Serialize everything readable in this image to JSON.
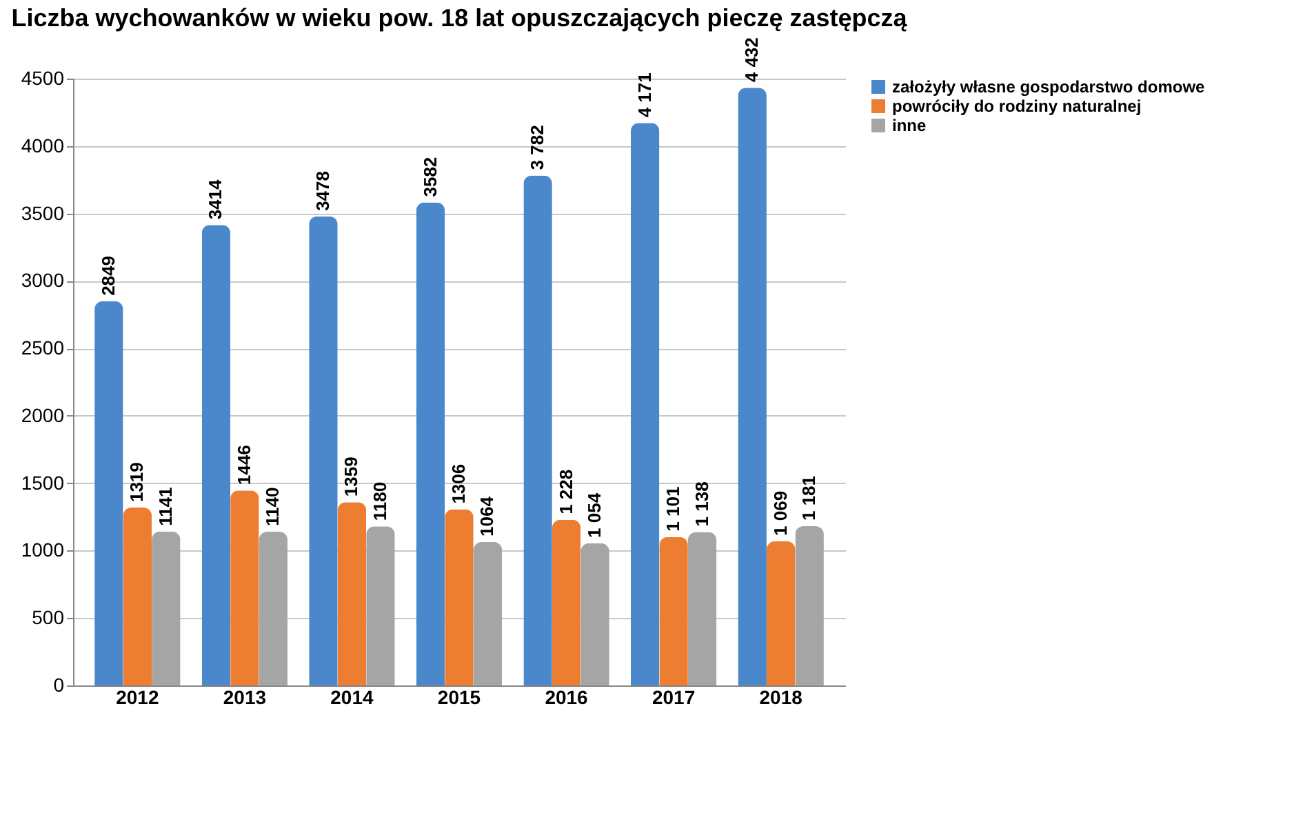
{
  "chart_data": {
    "type": "bar",
    "title": "Liczba wychowanków w wieku pow. 18 lat opuszczających  pieczę zastępczą",
    "categories": [
      "2012",
      "2013",
      "2014",
      "2015",
      "2016",
      "2017",
      "2018"
    ],
    "series": [
      {
        "name": "założyły własne gospodarstwo domowe",
        "color": "#4a87cb",
        "values": [
          2849,
          3414,
          3478,
          3582,
          3782,
          4171,
          4432
        ],
        "value_labels": [
          "2849",
          "3414",
          "3478",
          "3582",
          "3 782",
          "4 171",
          "4 432"
        ]
      },
      {
        "name": "powróciły do rodziny naturalnej",
        "color": "#ed7d31",
        "values": [
          1319,
          1446,
          1359,
          1306,
          1228,
          1101,
          1069
        ],
        "value_labels": [
          "1319",
          "1446",
          "1359",
          "1306",
          "1 228",
          "1 101",
          "1 069"
        ]
      },
      {
        "name": "inne",
        "color": "#a5a5a5",
        "values": [
          1141,
          1140,
          1180,
          1064,
          1054,
          1138,
          1181
        ],
        "value_labels": [
          "1141",
          "1140",
          "1180",
          "1064",
          "1 054",
          "1 138",
          "1 181"
        ]
      }
    ],
    "ylim": [
      0,
      4500
    ],
    "yticks": [
      0,
      500,
      1000,
      1500,
      2000,
      2500,
      3000,
      3500,
      4000,
      4500
    ],
    "grid": "y",
    "legend": "right"
  }
}
